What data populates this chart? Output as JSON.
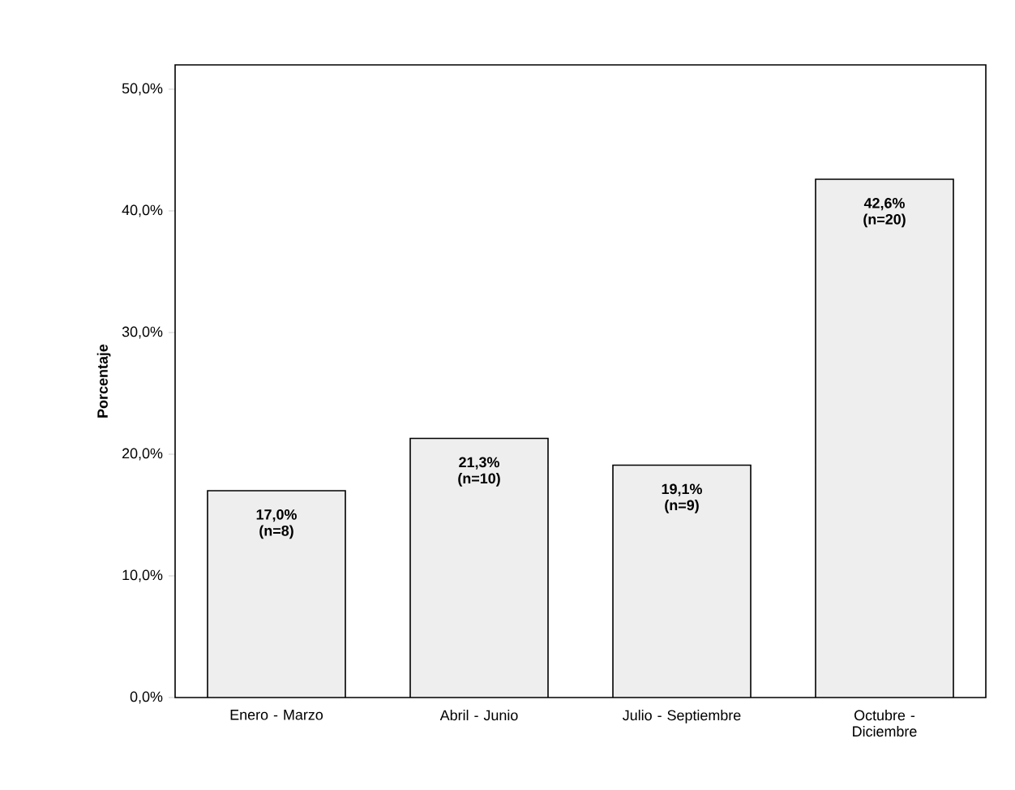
{
  "chart_data": {
    "type": "bar",
    "ylabel": "Porcentaje",
    "categories": [
      "Enero - Marzo",
      "Abril - Junio",
      "Julio - Septiembre",
      "Octubre - Diciembre"
    ],
    "values": [
      17.0,
      21.3,
      19.1,
      42.6
    ],
    "color": "#eeeeee",
    "value_labels": [
      "17,0% (n=8)",
      "21,3% (n=10)",
      "19,1% (n=9)",
      "42,6% (n=20)"
    ],
    "ylim": [
      0,
      52
    ],
    "yticks": [
      {
        "value": 0,
        "label": "0,0%"
      },
      {
        "value": 10,
        "label": "10,0%"
      },
      {
        "value": 20,
        "label": "20,0%"
      },
      {
        "value": 30,
        "label": "30,0%"
      },
      {
        "value": 40,
        "label": "40,0%"
      },
      {
        "value": 50,
        "label": "50,0%"
      }
    ],
    "grid": false
  }
}
